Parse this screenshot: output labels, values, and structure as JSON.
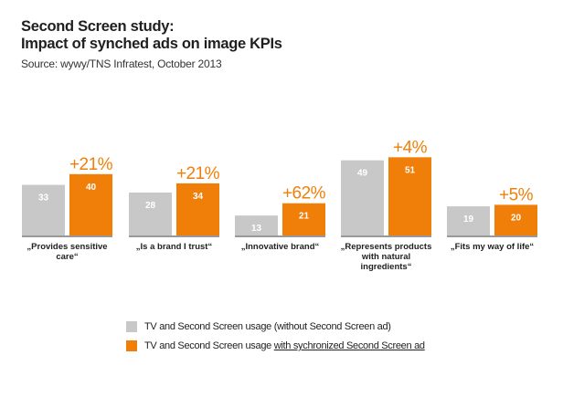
{
  "header": {
    "title_line1": "Second Screen study:",
    "title_line2": "Impact of synched ads on image KPIs",
    "source": "Source: wywy/TNS Infratest, October 2013"
  },
  "colors": {
    "without_ad": "#c8c8c8",
    "with_ad": "#f07f09",
    "text": "#1f1f1f"
  },
  "legend": {
    "without_ad": "TV and Second Screen usage (without Second Screen ad)",
    "with_ad_prefix": "TV and Second Screen usage ",
    "with_ad_underlined": "with sychronized Second Screen ad"
  },
  "chart_data": {
    "type": "bar",
    "title": "Impact of synched ads on image KPIs",
    "categories": [
      "„Provides sensitive care“",
      "„Is a brand I trust“",
      "„Innovative brand“",
      "„Represents products with natural ingredients“",
      "„Fits my way of life“"
    ],
    "category_lines": [
      [
        "„Provides sensitive",
        "care“"
      ],
      [
        "„Is a brand I trust“"
      ],
      [
        "„Innovative brand“"
      ],
      [
        "„Represents products",
        "with natural",
        "ingredients“"
      ],
      [
        "„Fits my way of life“"
      ]
    ],
    "series": [
      {
        "name": "TV and Second Screen usage (without Second Screen ad)",
        "values": [
          33,
          28,
          13,
          49,
          19
        ]
      },
      {
        "name": "TV and Second Screen usage with sychronized Second Screen ad",
        "values": [
          40,
          34,
          21,
          51,
          20
        ]
      }
    ],
    "uplift_labels": [
      "+21%",
      "+21%",
      "+62%",
      "+4%",
      "+5%"
    ],
    "ylim": [
      0,
      55
    ],
    "grid": false,
    "legend_position": "bottom"
  }
}
